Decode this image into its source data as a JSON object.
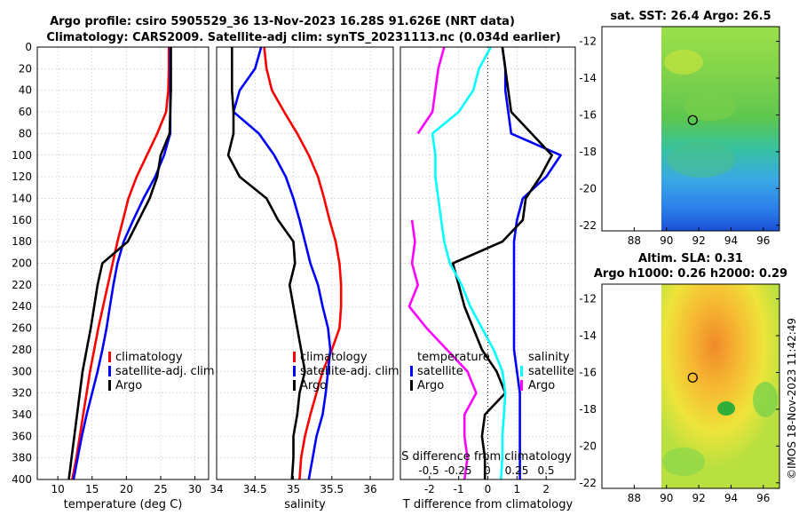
{
  "title_line1": "Argo profile: csiro 5905529_36 13-Nov-2023 16.28S 91.626E (NRT data)",
  "title_line2": "Climatology: CARS2009. Satellite-adj clim: synTS_20231113.nc (0.034d earlier)",
  "colors": {
    "climatology": "#ff0000",
    "satellite": "#0000ff",
    "argo": "#000000",
    "salinity_diff": "#00ffff",
    "temp_diff": "#ff00ff"
  },
  "chart_data": [
    {
      "type": "line",
      "name": "temperature",
      "xlabel": "temperature (deg C)",
      "xlim": [
        7,
        32
      ],
      "xticks": [
        10,
        15,
        20,
        25,
        30
      ],
      "ylim": [
        0,
        400
      ],
      "yticks": [
        0,
        20,
        40,
        60,
        80,
        100,
        120,
        140,
        160,
        180,
        200,
        220,
        240,
        260,
        280,
        300,
        320,
        340,
        360,
        380,
        400
      ],
      "legend": [
        "climatology",
        "satellite-adj. clim",
        "Argo"
      ],
      "series": [
        {
          "name": "climatology",
          "color": "#ff0000",
          "x": [
            26.2,
            26.2,
            26.1,
            25.8,
            24.5,
            23.0,
            21.5,
            20.3,
            19.5,
            18.7,
            18.0,
            17.3,
            16.6,
            15.9,
            15.3,
            14.7,
            14.2,
            13.7,
            13.2,
            12.7,
            12.1
          ],
          "y": [
            0,
            20,
            40,
            60,
            80,
            100,
            120,
            140,
            160,
            180,
            200,
            220,
            240,
            260,
            280,
            300,
            320,
            340,
            360,
            380,
            400
          ]
        },
        {
          "name": "satellite-adj. clim",
          "color": "#0000ff",
          "x": [
            26.4,
            26.4,
            26.4,
            26.4,
            26.4,
            25.5,
            24.2,
            22.5,
            21.0,
            19.6,
            18.7,
            18.1,
            17.6,
            17.1,
            16.5,
            15.8,
            15.0,
            14.2,
            13.5,
            12.9,
            12.3
          ],
          "y": [
            0,
            20,
            40,
            60,
            80,
            100,
            120,
            140,
            160,
            180,
            200,
            220,
            240,
            260,
            280,
            300,
            320,
            340,
            360,
            380,
            400
          ]
        },
        {
          "name": "Argo",
          "color": "#000000",
          "x": [
            26.5,
            26.5,
            26.5,
            26.4,
            26.3,
            25.0,
            24.5,
            23.4,
            21.8,
            20.2,
            16.5,
            15.8,
            15.3,
            14.8,
            14.2,
            13.6,
            13.2,
            12.8,
            12.4,
            12.0,
            11.6
          ],
          "y": [
            0,
            20,
            40,
            60,
            80,
            100,
            120,
            140,
            160,
            180,
            200,
            220,
            240,
            260,
            280,
            300,
            320,
            340,
            360,
            380,
            400
          ]
        }
      ]
    },
    {
      "type": "line",
      "name": "salinity",
      "xlabel": "salinity",
      "xlim": [
        34,
        36.3
      ],
      "xticks": [
        34,
        34.5,
        35,
        35.5,
        36
      ],
      "xtick_labels": [
        "34",
        "34.5",
        "35",
        "35.5",
        "36"
      ],
      "ylim": [
        0,
        400
      ],
      "legend": [
        "climatology",
        "satellite-adj. clim",
        "Argo"
      ],
      "series": [
        {
          "name": "climatology",
          "color": "#ff0000",
          "x": [
            34.62,
            34.65,
            34.72,
            34.88,
            35.05,
            35.2,
            35.32,
            35.4,
            35.47,
            35.55,
            35.6,
            35.62,
            35.62,
            35.6,
            35.5,
            35.38,
            35.3,
            35.22,
            35.15,
            35.1,
            35.08
          ],
          "y": [
            0,
            20,
            40,
            60,
            80,
            100,
            120,
            140,
            160,
            180,
            200,
            220,
            240,
            260,
            280,
            300,
            320,
            340,
            360,
            380,
            400
          ]
        },
        {
          "name": "satellite-adj. clim",
          "color": "#0000ff",
          "x": [
            34.58,
            34.5,
            34.3,
            34.22,
            34.55,
            34.75,
            34.9,
            35.0,
            35.08,
            35.15,
            35.22,
            35.32,
            35.38,
            35.45,
            35.48,
            35.45,
            35.42,
            35.38,
            35.3,
            35.25,
            35.2
          ],
          "y": [
            0,
            20,
            40,
            60,
            80,
            100,
            120,
            140,
            160,
            180,
            200,
            220,
            240,
            260,
            280,
            300,
            320,
            340,
            360,
            380,
            400
          ]
        },
        {
          "name": "Argo",
          "color": "#000000",
          "x": [
            34.2,
            34.2,
            34.2,
            34.22,
            34.22,
            34.15,
            34.3,
            34.65,
            34.8,
            35.0,
            35.02,
            34.95,
            35.0,
            35.05,
            35.1,
            35.15,
            35.08,
            35.05,
            35.0,
            35.0,
            34.98
          ],
          "y": [
            0,
            20,
            40,
            60,
            80,
            100,
            120,
            140,
            160,
            180,
            200,
            220,
            240,
            260,
            280,
            300,
            320,
            340,
            360,
            380,
            400
          ]
        }
      ]
    },
    {
      "type": "line",
      "name": "difference from climatology",
      "xlabel": "T difference from climatology",
      "xlim": [
        -3,
        3
      ],
      "xticks": [
        -2,
        -1,
        0,
        1,
        2
      ],
      "top_axis_label": "S difference from climatology",
      "top_ticks": [
        "-0.5",
        "-0.25",
        "0",
        "0.25",
        "0.5"
      ],
      "ylim": [
        0,
        400
      ],
      "legend_temperature": [
        "temperature",
        "satellite",
        "Argo"
      ],
      "legend_salinity": [
        "salinity",
        "satellite"
      ],
      "series": [
        {
          "name": "temperature satellite",
          "color": "#0000ff",
          "x": [
            0.5,
            0.6,
            0.6,
            0.7,
            0.8,
            2.5,
            2.0,
            1.2,
            1.0,
            0.9,
            0.9,
            0.9,
            0.9,
            0.9,
            0.9,
            1.0,
            1.1,
            1.1,
            1.1,
            1.1,
            1.1
          ],
          "y": [
            0,
            20,
            40,
            60,
            80,
            100,
            120,
            140,
            160,
            180,
            200,
            220,
            240,
            260,
            280,
            300,
            320,
            340,
            360,
            380,
            400
          ]
        },
        {
          "name": "temperature Argo",
          "color": "#000000",
          "x": [
            0.5,
            0.6,
            0.7,
            0.8,
            1.5,
            2.2,
            1.8,
            1.3,
            1.2,
            0.5,
            -1.2,
            -1.0,
            -0.8,
            -0.5,
            -0.2,
            0.3,
            0.6,
            -0.1,
            -0.2,
            -0.1,
            -0.1
          ],
          "y": [
            0,
            20,
            40,
            60,
            80,
            100,
            120,
            140,
            160,
            180,
            200,
            220,
            240,
            260,
            280,
            300,
            320,
            340,
            360,
            380,
            400
          ]
        },
        {
          "name": "salinity satellite",
          "color": "#00ffff",
          "x": [
            0.1,
            -0.3,
            -0.5,
            -1.0,
            -1.9,
            -1.8,
            -1.8,
            -1.7,
            -1.6,
            -1.5,
            -1.3,
            -0.9,
            -0.6,
            -0.2,
            0.2,
            0.5,
            0.6,
            0.55,
            0.5,
            0.5,
            0.45
          ],
          "y": [
            0,
            20,
            40,
            60,
            80,
            100,
            120,
            140,
            160,
            180,
            200,
            220,
            240,
            260,
            280,
            300,
            320,
            340,
            360,
            380,
            400
          ]
        },
        {
          "name": "salinity Argo",
          "color": "#ff00ff",
          "x": [
            -1.5,
            -1.7,
            -1.8,
            -1.9,
            -2.4,
            null,
            null,
            null,
            -2.6,
            -2.5,
            -2.6,
            -2.4,
            -2.7,
            -2.1,
            -1.4,
            -0.7,
            -0.4,
            -0.8,
            -0.8,
            -0.7,
            -0.8
          ],
          "y": [
            0,
            20,
            40,
            60,
            80,
            100,
            120,
            140,
            160,
            180,
            200,
            220,
            240,
            260,
            280,
            300,
            320,
            340,
            360,
            380,
            400
          ]
        }
      ]
    },
    {
      "type": "heatmap",
      "name": "sst map",
      "title": "sat. SST: 26.4 Argo: 26.5",
      "xlim": [
        86,
        97
      ],
      "xticks": [
        88,
        90,
        92,
        94,
        96
      ],
      "ylim": [
        -22.3,
        -11.2
      ],
      "yticks": [
        -12,
        -14,
        -16,
        -18,
        -20,
        -22
      ],
      "argo_position": [
        91.626,
        -16.28
      ],
      "data_region_lon": [
        90,
        97
      ]
    },
    {
      "type": "heatmap",
      "name": "sla map",
      "title_line1": "Altim. SLA: 0.31",
      "title_line2": "Argo h1000: 0.26 h2000: 0.29",
      "xlim": [
        86,
        97
      ],
      "xticks": [
        88,
        90,
        92,
        94,
        96
      ],
      "ylim": [
        -22.3,
        -11.2
      ],
      "yticks": [
        -12,
        -14,
        -16,
        -18,
        -20,
        -22
      ],
      "argo_position": [
        91.626,
        -16.28
      ],
      "data_region_lon": [
        90,
        97
      ]
    }
  ],
  "copyright": "©IMOS 18-Nov-2023 11:42:49"
}
